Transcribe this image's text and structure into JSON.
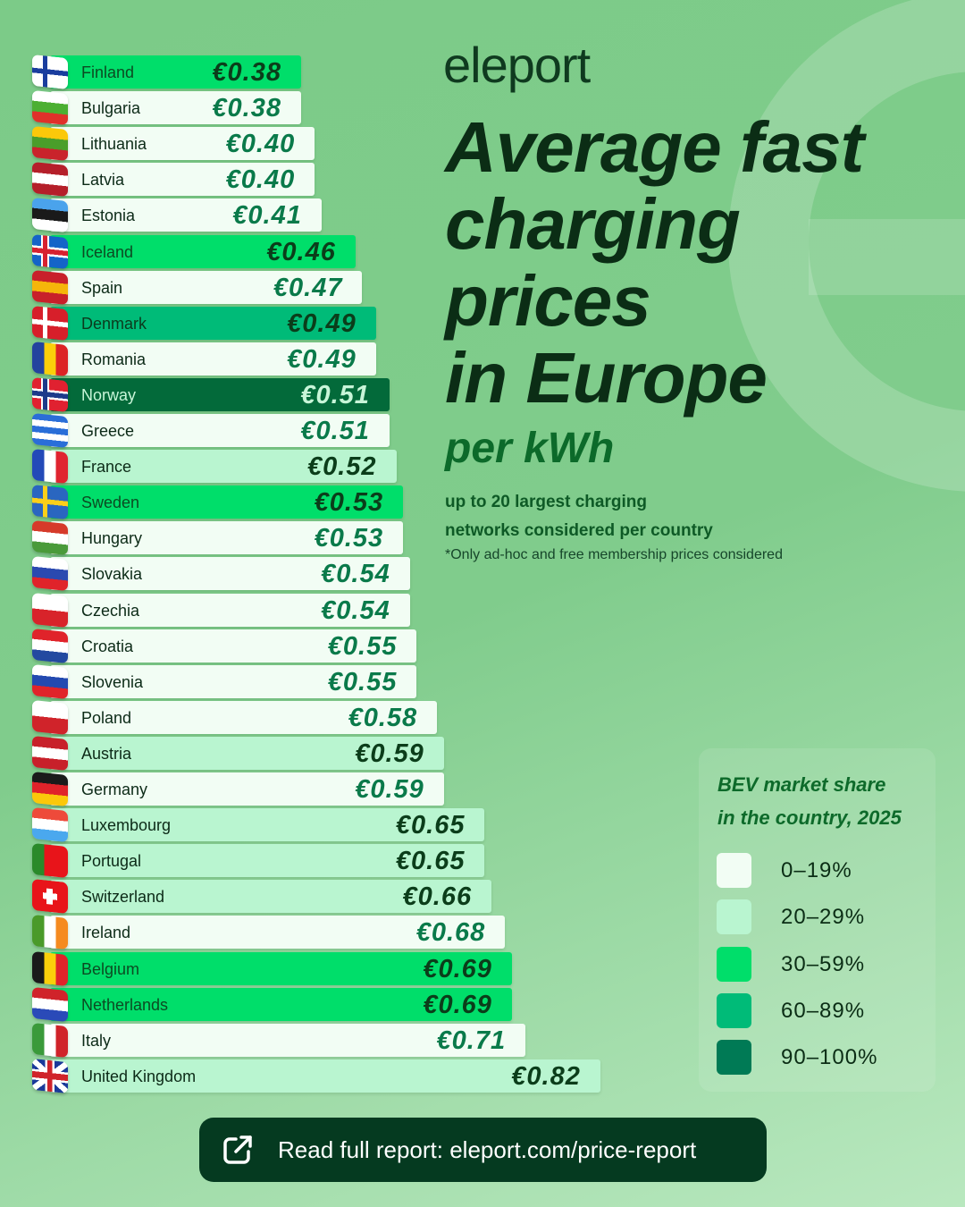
{
  "brand": "eleport",
  "title_lines": [
    "Average fast",
    "charging",
    "prices",
    "in Europe"
  ],
  "subtitle": "per kWh",
  "description_lines": [
    "up to 20 largest charging",
    "networks considered per country"
  ],
  "footnote": "*Only ad-hoc and free membership prices considered",
  "cta": {
    "label": "Read full report: eleport.com/price-report",
    "icon": "external-link-icon"
  },
  "legend": {
    "title_lines": [
      "BEV market share",
      "in the country, 2025"
    ],
    "items": [
      {
        "label": "0–19%",
        "color": "#f2fdf4"
      },
      {
        "label": "20–29%",
        "color": "#b9f5d0"
      },
      {
        "label": "30–59%",
        "color": "#00de6a"
      },
      {
        "label": "60–89%",
        "color": "#00bb78"
      },
      {
        "label": "90–100%",
        "color": "#007a55"
      }
    ]
  },
  "chart_data": {
    "type": "bar",
    "orientation": "horizontal",
    "title": "Average fast charging prices in Europe per kWh",
    "unit": "€/kWh",
    "color_by": "BEV market share in the country, 2025",
    "categories": [
      "Finland",
      "Bulgaria",
      "Lithuania",
      "Latvia",
      "Estonia",
      "Iceland",
      "Spain",
      "Denmark",
      "Romania",
      "Norway",
      "Greece",
      "France",
      "Sweden",
      "Hungary",
      "Slovakia",
      "Czechia",
      "Croatia",
      "Slovenia",
      "Poland",
      "Austria",
      "Germany",
      "Luxembourg",
      "Portugal",
      "Switzerland",
      "Ireland",
      "Belgium",
      "Netherlands",
      "Italy",
      "United Kingdom"
    ],
    "values": [
      0.38,
      0.38,
      0.4,
      0.4,
      0.41,
      0.46,
      0.47,
      0.49,
      0.49,
      0.51,
      0.51,
      0.52,
      0.53,
      0.53,
      0.54,
      0.54,
      0.55,
      0.55,
      0.58,
      0.59,
      0.59,
      0.65,
      0.65,
      0.66,
      0.68,
      0.69,
      0.69,
      0.71,
      0.82
    ],
    "labels": [
      "€0.38",
      "€0.38",
      "€0.40",
      "€0.40",
      "€0.41",
      "€0.46",
      "€0.47",
      "€0.49",
      "€0.49",
      "€0.51",
      "€0.51",
      "€0.52",
      "€0.53",
      "€0.53",
      "€0.54",
      "€0.54",
      "€0.55",
      "€0.55",
      "€0.58",
      "€0.59",
      "€0.59",
      "€0.65",
      "€0.65",
      "€0.66",
      "€0.68",
      "€0.69",
      "€0.69",
      "€0.71",
      "€0.82"
    ],
    "share_band": [
      2,
      0,
      0,
      0,
      0,
      2,
      0,
      3,
      0,
      4,
      0,
      1,
      2,
      0,
      0,
      0,
      0,
      0,
      0,
      1,
      0,
      1,
      1,
      1,
      0,
      2,
      2,
      0,
      1
    ],
    "flags": [
      [
        "nordic",
        "#ffffff",
        "#1a3d9e"
      ],
      [
        "h",
        "#ffffff",
        "#4caf32",
        "#e0302a"
      ],
      [
        "h",
        "#fbc80a",
        "#4a9e2a",
        "#c9232b"
      ],
      [
        "h",
        "#b51f2a",
        "#ffffff",
        "#b51f2a"
      ],
      [
        "h",
        "#4aa3ec",
        "#1a1a1a",
        "#ffffff"
      ],
      [
        "nordic",
        "#1464c8",
        "#ffffff",
        "#d72130"
      ],
      [
        "h",
        "#c8202a",
        "#f5b50a",
        "#c8202a"
      ],
      [
        "nordic",
        "#d71f2a",
        "#ffffff"
      ],
      [
        "v",
        "#23439e",
        "#fbcf0a",
        "#dc2325"
      ],
      [
        "nordic",
        "#e02130",
        "#ffffff",
        "#1d3a8a"
      ],
      [
        "h",
        "#2a6ed8",
        "#ffffff",
        "#2a6ed8",
        "#ffffff",
        "#2a6ed8"
      ],
      [
        "v",
        "#2349b8",
        "#ffffff",
        "#e02430"
      ],
      [
        "nordic",
        "#2a66c0",
        "#fbcf1a"
      ],
      [
        "h",
        "#d63a2a",
        "#ffffff",
        "#4a9a3a"
      ],
      [
        "h",
        "#ffffff",
        "#2a49b0",
        "#e0232a"
      ],
      [
        "h",
        "#ffffff",
        "#d8232a"
      ],
      [
        "h",
        "#e0232a",
        "#ffffff",
        "#2349a0"
      ],
      [
        "h",
        "#ffffff",
        "#2349b0",
        "#e0232a"
      ],
      [
        "h",
        "#ffffff",
        "#d0232a"
      ],
      [
        "h",
        "#c8202a",
        "#ffffff",
        "#c8202a"
      ],
      [
        "h",
        "#1a1a1a",
        "#e0232a",
        "#fbc80a"
      ],
      [
        "h",
        "#ee4a3a",
        "#ffffff",
        "#4aa8ee"
      ],
      [
        "v",
        "#2a8a2a",
        "#e8141a",
        "#e8141a"
      ],
      [
        "swiss",
        "#e8141a",
        "#ffffff"
      ],
      [
        "v",
        "#4a9a2a",
        "#ffffff",
        "#f58a20"
      ],
      [
        "v",
        "#1a1a1a",
        "#fbcf0a",
        "#e0232a"
      ],
      [
        "h",
        "#d0232a",
        "#ffffff",
        "#2a4ab8"
      ],
      [
        "v",
        "#3a9a3a",
        "#ffffff",
        "#d0232a"
      ],
      [
        "uk",
        "#1a3a9a",
        "#ffffff",
        "#d0232a"
      ]
    ]
  }
}
